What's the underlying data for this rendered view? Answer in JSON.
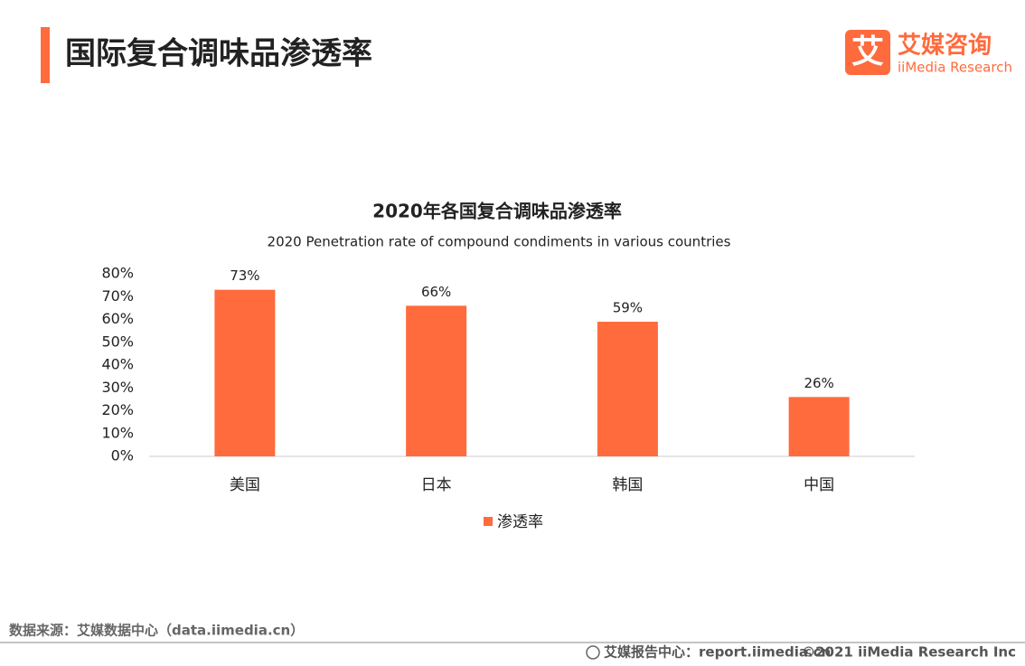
{
  "header": {
    "title": "国际复合调味品渗透率"
  },
  "logo": {
    "icon": "艾",
    "name": "艾媒咨询",
    "name_en": "iiMedia Research"
  },
  "chart_data": {
    "type": "bar",
    "title": "2020年各国复合调味品渗透率",
    "subtitle": "2020 Penetration rate of compound condiments in various countries",
    "categories": [
      "美国",
      "日本",
      "韩国",
      "中国"
    ],
    "series": [
      {
        "name": "渗透率",
        "color": "#ff6b3d",
        "values": [
          73,
          66,
          59,
          26
        ],
        "value_labels": [
          "73%",
          "66%",
          "59%",
          "26%"
        ]
      }
    ],
    "ylim": [
      0,
      80
    ],
    "yticks": [
      {
        "value": 0,
        "label": "0%"
      },
      {
        "value": 10,
        "label": "10%"
      },
      {
        "value": 20,
        "label": "20%"
      },
      {
        "value": 30,
        "label": "30%"
      },
      {
        "value": 40,
        "label": "40%"
      },
      {
        "value": 50,
        "label": "50%"
      },
      {
        "value": 60,
        "label": "60%"
      },
      {
        "value": 70,
        "label": "70%"
      },
      {
        "value": 80,
        "label": "80%"
      }
    ],
    "legend": "bottom"
  },
  "footer": {
    "source": "数据来源：艾媒数据中心（data.iimedia.cn）",
    "report": "艾媒报告中心：report.iimedia.cn",
    "copyright": "©2021  iiMedia Research  Inc"
  }
}
